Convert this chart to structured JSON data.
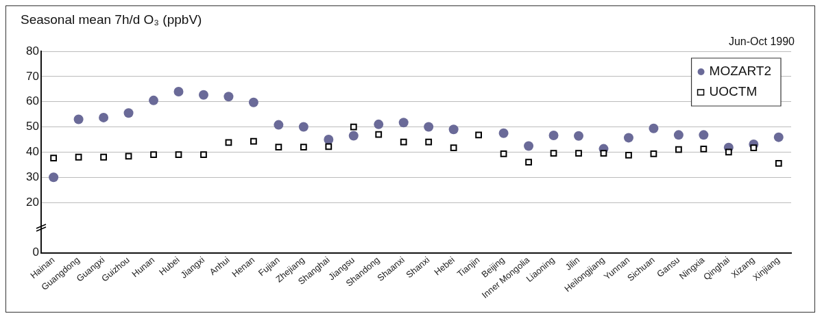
{
  "chart_data": {
    "type": "scatter",
    "title": "Seasonal mean 7h/d O₃ (ppbV)",
    "subtitle": "Jun-Oct 1990",
    "categories": [
      "Hainan",
      "Guangdong",
      "Guangxi",
      "Guizhou",
      "Hunan",
      "Hubei",
      "Jiangxi",
      "Anhui",
      "Henan",
      "Fujian",
      "Zhejiang",
      "Shanghai",
      "Jiangsu",
      "Shandong",
      "Shaanxi",
      "Shanxi",
      "Hebei",
      "Tianjin",
      "Beijing",
      "Inner Mongolia",
      "Liaoning",
      "Jilin",
      "Heilongjiang",
      "Yunnan",
      "Sichuan",
      "Gansu",
      "Ningxia",
      "Qinghai",
      "Xizang",
      "Xinjiang"
    ],
    "series": [
      {
        "name": "MOZART2",
        "color": "#6a6a98",
        "marker": "circle",
        "values": [
          30,
          53,
          53.7,
          55.5,
          60.5,
          64,
          62.7,
          62,
          59.7,
          50.8,
          50,
          45,
          46.5,
          51,
          51.7,
          50,
          49,
          null,
          47.5,
          42.4,
          46.6,
          46.4,
          41.3,
          45.7,
          49.4,
          46.8,
          46.8,
          41.8,
          43.1,
          45.9
        ]
      },
      {
        "name": "UOCTM",
        "color": "#000000",
        "marker": "square",
        "values": [
          37.6,
          38,
          38,
          38.4,
          39,
          39,
          39,
          43.8,
          44.3,
          42,
          42,
          42.2,
          50,
          47,
          44,
          44,
          41.7,
          46.8,
          39.3,
          36,
          39.5,
          39.5,
          39.5,
          38.8,
          39.3,
          41,
          41.2,
          40,
          41.7,
          35.5
        ]
      }
    ],
    "ylim": [
      0,
      80
    ],
    "yticks": [
      0,
      20,
      30,
      40,
      50,
      60,
      70,
      80
    ],
    "grid": "y",
    "legend": "top right"
  }
}
